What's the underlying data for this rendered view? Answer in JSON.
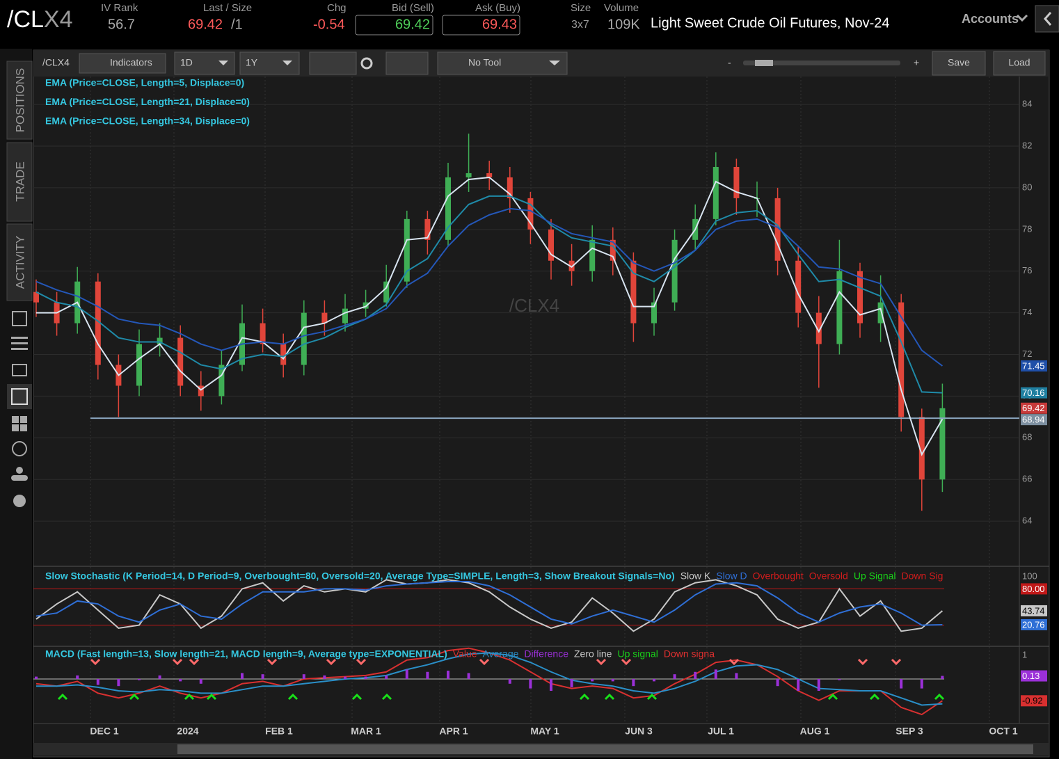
{
  "header": {
    "symbol_root": "/CL",
    "symbol_suffix": "X4",
    "iv_rank_label": "IV Rank",
    "iv_rank": "56.7",
    "last_label": "Last / Size",
    "last": "69.42",
    "size": "/1",
    "chg_label": "Chg",
    "chg": "-0.54",
    "bid_label": "Bid (Sell)",
    "bid": "69.42",
    "ask_label": "Ask (Buy)",
    "ask": "69.43",
    "size_label": "Size",
    "size_value": "3x7",
    "volume_label": "Volume",
    "volume": "109K",
    "description": "Light Sweet Crude Oil Futures, Nov-24",
    "accounts": "Accounts"
  },
  "sidebar": {
    "tabs": [
      "POSITIONS",
      "TRADE",
      "ACTIVITY"
    ]
  },
  "toolbar": {
    "symbol": "/CLX4",
    "indicators": "Indicators",
    "aggregation": "1D",
    "period": "1Y",
    "tool": "No Tool",
    "zoom_out": "-",
    "zoom_in": "+",
    "save": "Save",
    "load": "Load"
  },
  "chart_data": [
    {
      "type": "candlestick",
      "watermark": "/CLX4",
      "up_color": "#3fae55",
      "down_color": "#e0453a",
      "xtick_labels": [
        "DEC 1",
        "2024",
        "FEB 1",
        "MAR 1",
        "APR 1",
        "MAY 1",
        "JUN 3",
        "JUL 1",
        "AUG 1",
        "SEP 3",
        "OCT 1"
      ],
      "open": [
        75.0,
        74.5,
        73.5,
        75.5,
        71.5,
        70.5,
        72.5,
        72.8,
        70.5,
        70.0,
        71.5,
        73.5,
        72.5,
        71.5,
        74.0,
        73.5,
        74.2,
        74.5,
        75.5,
        78.5,
        77.5,
        80.5,
        80.7,
        80.5,
        79.5,
        78.0,
        76.5,
        76.0,
        77.5,
        76.5,
        73.5,
        74.5,
        77.5,
        78.5,
        81.0,
        79.5,
        79.5,
        76.5,
        74.0,
        72.5,
        76.0,
        73.5,
        74.5,
        69.0,
        66.0
      ],
      "high": [
        75.6,
        75.0,
        76.2,
        75.9,
        72.0,
        73.2,
        73.5,
        73.4,
        71.2,
        72.2,
        74.4,
        74.2,
        73.0,
        74.6,
        74.6,
        74.9,
        75.1,
        76.3,
        78.9,
        78.9,
        81.2,
        82.6,
        81.3,
        81.0,
        79.8,
        78.5,
        77.3,
        78.2,
        78.1,
        76.9,
        75.2,
        78.0,
        79.2,
        81.7,
        81.4,
        80.3,
        80.0,
        77.2,
        74.8,
        77.5,
        76.4,
        75.8,
        74.9,
        69.4,
        70.6
      ],
      "low": [
        73.8,
        72.9,
        73.0,
        70.8,
        69.0,
        70.0,
        71.9,
        70.0,
        69.3,
        69.6,
        71.2,
        72.1,
        70.9,
        71.0,
        72.9,
        73.1,
        73.8,
        74.3,
        75.2,
        76.8,
        77.2,
        79.8,
        79.9,
        78.8,
        77.3,
        75.6,
        75.3,
        75.5,
        75.8,
        72.6,
        72.9,
        74.1,
        77.0,
        78.2,
        78.7,
        78.6,
        75.8,
        73.3,
        70.4,
        72.0,
        72.8,
        72.6,
        68.3,
        64.5,
        65.4
      ],
      "close": [
        74.5,
        73.5,
        75.5,
        71.5,
        70.5,
        72.5,
        72.8,
        70.5,
        70.0,
        71.5,
        73.5,
        72.5,
        71.5,
        74.0,
        73.5,
        74.2,
        74.5,
        75.5,
        78.5,
        77.5,
        80.5,
        80.7,
        80.5,
        79.5,
        78.0,
        76.5,
        76.0,
        77.5,
        76.5,
        73.5,
        74.5,
        77.5,
        78.5,
        81.0,
        79.5,
        79.5,
        76.5,
        74.0,
        72.5,
        76.0,
        73.5,
        74.5,
        69.0,
        66.0,
        69.42
      ],
      "series": [
        {
          "name": "EMA (Price=CLOSE, Length=5, Displace=0)",
          "color": "#d8e4f0",
          "values": [
            74.0,
            74.0,
            74.5,
            72.5,
            71.0,
            71.8,
            72.5,
            71.2,
            70.3,
            71.0,
            72.8,
            72.6,
            71.8,
            73.3,
            73.5,
            74.0,
            74.3,
            75.2,
            77.5,
            77.6,
            79.6,
            80.4,
            80.5,
            79.7,
            78.3,
            76.8,
            76.2,
            77.1,
            76.7,
            74.3,
            74.3,
            76.6,
            78.0,
            80.3,
            79.8,
            79.5,
            77.3,
            74.9,
            73.1,
            75.0,
            73.9,
            74.2,
            70.3,
            67.2,
            68.9
          ]
        },
        {
          "name": "EMA (Price=CLOSE, Length=21, Displace=0)",
          "color": "#1f8aa8",
          "values": [
            75.0,
            74.5,
            74.3,
            73.6,
            72.8,
            72.6,
            72.6,
            72.1,
            71.5,
            71.3,
            71.8,
            72.0,
            71.9,
            72.5,
            72.8,
            73.3,
            73.7,
            74.4,
            76.0,
            76.6,
            78.1,
            79.2,
            79.6,
            79.6,
            79.2,
            78.2,
            77.6,
            77.4,
            77.2,
            75.9,
            75.5,
            76.2,
            77.0,
            78.4,
            78.8,
            78.9,
            78.2,
            76.8,
            75.5,
            75.6,
            75.2,
            74.8,
            72.6,
            70.2,
            70.16
          ]
        },
        {
          "name": "EMA (Price=CLOSE, Length=34, Displace=0)",
          "color": "#2457b8",
          "values": [
            75.5,
            75.1,
            74.8,
            74.3,
            73.7,
            73.5,
            73.4,
            73.0,
            72.5,
            72.2,
            72.5,
            72.6,
            72.5,
            72.9,
            73.1,
            73.4,
            73.7,
            74.2,
            75.3,
            75.9,
            77.2,
            78.2,
            78.7,
            79.0,
            78.9,
            78.3,
            77.8,
            77.6,
            77.4,
            76.4,
            76.0,
            76.4,
            77.0,
            78.0,
            78.4,
            78.5,
            78.1,
            77.2,
            76.2,
            76.1,
            75.7,
            75.4,
            73.8,
            72.2,
            71.45
          ]
        }
      ],
      "hline": 68.94,
      "ylim": [
        61.9,
        85.34
      ],
      "yticks": [
        64,
        66,
        68,
        70,
        72,
        74,
        76,
        78,
        80,
        82,
        84
      ],
      "grid": true
    },
    {
      "type": "line",
      "title": "Slow Stochastic (K Period=14, D Period=9, Overbought=80, Oversold=20, Average Type=SIMPLE, Length=3, Show Breakout Signals=No)",
      "series": [
        {
          "name": "Slow K",
          "color": "#c8c8c8",
          "values": [
            30,
            55,
            75,
            45,
            15,
            20,
            70,
            55,
            15,
            35,
            80,
            90,
            60,
            85,
            75,
            80,
            75,
            95,
            88,
            90,
            95,
            90,
            75,
            50,
            30,
            15,
            25,
            65,
            40,
            10,
            30,
            75,
            90,
            95,
            85,
            70,
            30,
            15,
            25,
            80,
            35,
            60,
            10,
            15,
            43.74
          ]
        },
        {
          "name": "Slow D",
          "color": "#2f6fd6",
          "values": [
            35,
            40,
            60,
            55,
            35,
            25,
            45,
            55,
            35,
            30,
            55,
            75,
            75,
            75,
            80,
            80,
            78,
            85,
            88,
            90,
            92,
            92,
            85,
            70,
            50,
            30,
            22,
            35,
            45,
            35,
            25,
            45,
            70,
            88,
            90,
            85,
            65,
            40,
            25,
            40,
            50,
            55,
            40,
            20,
            20.76
          ]
        }
      ],
      "legend_extra": [
        {
          "name": "Overbought",
          "color": "#d01c1c"
        },
        {
          "name": "Oversold",
          "color": "#d01c1c"
        },
        {
          "name": "Up Signal",
          "color": "#19d019"
        },
        {
          "name": "Down Sig",
          "color": "#d01c1c"
        }
      ],
      "levels": [
        {
          "value": 80,
          "label": "80.00"
        },
        20
      ],
      "level_color": "#c01818",
      "ylim": [
        -13.8,
        112.7
      ],
      "yticks": [
        100
      ]
    },
    {
      "type": "line",
      "title": "MACD (Fast length=13, Slow length=21, MACD length=9, Average type=EXPONENTIAL)",
      "series": [
        {
          "name": "Value",
          "color": "#d83030",
          "values": [
            -0.2,
            -0.3,
            -0.1,
            -0.6,
            -0.8,
            -0.6,
            -0.3,
            -0.6,
            -0.8,
            -0.6,
            -0.2,
            -0.1,
            -0.3,
            0.0,
            0.05,
            0.1,
            0.15,
            0.3,
            0.8,
            0.9,
            1.2,
            1.3,
            1.1,
            0.8,
            0.3,
            -0.2,
            -0.4,
            -0.3,
            -0.4,
            -0.8,
            -0.7,
            -0.2,
            0.2,
            0.7,
            0.8,
            0.6,
            0.1,
            -0.5,
            -0.9,
            -0.5,
            -0.5,
            -0.5,
            -1.2,
            -1.5,
            -0.92
          ]
        },
        {
          "name": "Average",
          "color": "#2a8fc8",
          "values": [
            -0.3,
            -0.3,
            -0.25,
            -0.35,
            -0.5,
            -0.55,
            -0.45,
            -0.5,
            -0.6,
            -0.6,
            -0.45,
            -0.3,
            -0.3,
            -0.2,
            -0.1,
            0.0,
            0.05,
            0.15,
            0.4,
            0.6,
            0.85,
            1.05,
            1.1,
            1.0,
            0.7,
            0.3,
            -0.05,
            -0.2,
            -0.3,
            -0.5,
            -0.6,
            -0.4,
            -0.1,
            0.3,
            0.55,
            0.6,
            0.4,
            0.0,
            -0.4,
            -0.45,
            -0.5,
            -0.5,
            -0.8,
            -1.1,
            -1.05
          ]
        },
        {
          "name": "Difference",
          "color": "#9b30d8",
          "style": "histogram",
          "values": [
            0.1,
            0,
            0.15,
            -0.25,
            -0.3,
            -0.05,
            0.15,
            -0.1,
            -0.2,
            0,
            0.25,
            0.2,
            0,
            0.2,
            0.15,
            0.1,
            0.1,
            0.15,
            0.4,
            0.3,
            0.35,
            0.25,
            0,
            -0.2,
            -0.4,
            -0.5,
            -0.35,
            -0.1,
            -0.1,
            -0.3,
            -0.1,
            0.2,
            0.3,
            0.4,
            0.25,
            0,
            -0.3,
            -0.5,
            -0.5,
            -0.05,
            0,
            0,
            -0.4,
            -0.4,
            0.13
          ]
        }
      ],
      "legend_extra": [
        {
          "name": "Zero line",
          "color": "#c8c8c8"
        },
        {
          "name": "Up signal",
          "color": "#19d019"
        },
        {
          "name": "Down signa",
          "color": "#e03030"
        }
      ],
      "zero_line": 0,
      "ylim": [
        -1.88,
        1.35
      ],
      "yticks": [
        1
      ]
    }
  ]
}
